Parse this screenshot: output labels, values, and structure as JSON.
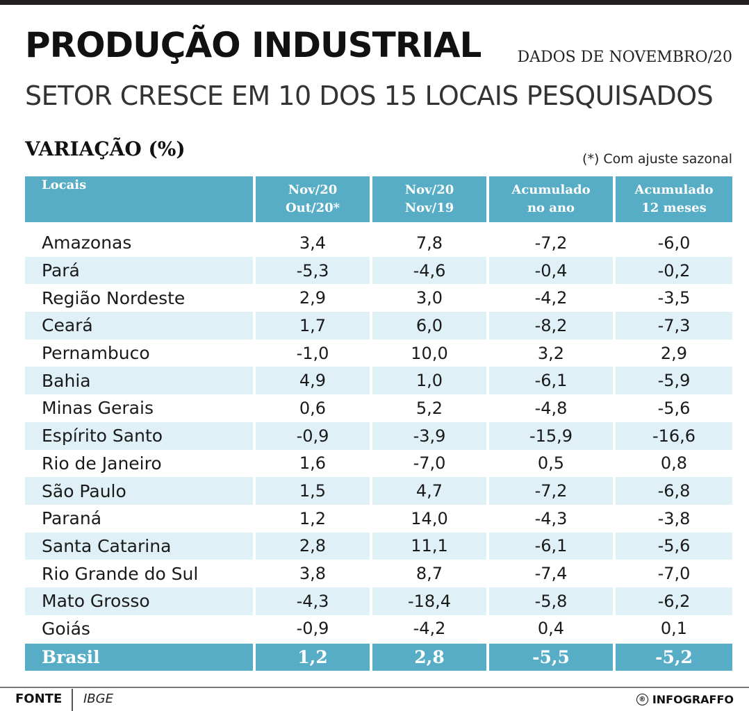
{
  "header": {
    "title": "PRODUÇÃO INDUSTRIAL",
    "period": "DADOS DE NOVEMBRO/20",
    "subtitle": "SETOR CRESCE EM 10 DOS 15 LOCAIS PESQUISADOS",
    "section": "VARIAÇÃO (%)",
    "note": "(*) Com ajuste sazonal"
  },
  "chart_data": {
    "type": "table",
    "columns": [
      {
        "label_line1": "Locais",
        "label_line2": ""
      },
      {
        "label_line1": "Nov/20",
        "label_line2": "Out/20*"
      },
      {
        "label_line1": "Nov/20",
        "label_line2": "Nov/19"
      },
      {
        "label_line1": "Acumulado",
        "label_line2": "no ano"
      },
      {
        "label_line1": "Acumulado",
        "label_line2": "12 meses"
      }
    ],
    "rows": [
      {
        "local": "Amazonas",
        "values": [
          "3,4",
          "7,8",
          "-7,2",
          "-6,0"
        ]
      },
      {
        "local": "Pará",
        "values": [
          "-5,3",
          "-4,6",
          "-0,4",
          "-0,2"
        ]
      },
      {
        "local": "Região Nordeste",
        "values": [
          "2,9",
          "3,0",
          "-4,2",
          "-3,5"
        ]
      },
      {
        "local": "Ceará",
        "values": [
          "1,7",
          "6,0",
          "-8,2",
          "-7,3"
        ]
      },
      {
        "local": "Pernambuco",
        "values": [
          "-1,0",
          "10,0",
          "3,2",
          "2,9"
        ]
      },
      {
        "local": "Bahia",
        "values": [
          "4,9",
          "1,0",
          "-6,1",
          "-5,9"
        ]
      },
      {
        "local": "Minas Gerais",
        "values": [
          "0,6",
          "5,2",
          "-4,8",
          "-5,6"
        ]
      },
      {
        "local": "Espírito Santo",
        "values": [
          "-0,9",
          "-3,9",
          "-15,9",
          "-16,6"
        ]
      },
      {
        "local": "Rio de Janeiro",
        "values": [
          "1,6",
          "-7,0",
          "0,5",
          "0,8"
        ]
      },
      {
        "local": "São Paulo",
        "values": [
          "1,5",
          "4,7",
          "-7,2",
          "-6,8"
        ]
      },
      {
        "local": "Paraná",
        "values": [
          "1,2",
          "14,0",
          "-4,3",
          "-3,8"
        ]
      },
      {
        "local": "Santa Catarina",
        "values": [
          "2,8",
          "11,1",
          "-6,1",
          "-5,6"
        ]
      },
      {
        "local": "Rio Grande do Sul",
        "values": [
          "3,8",
          "8,7",
          "-7,4",
          "-7,0"
        ]
      },
      {
        "local": "Mato Grosso",
        "values": [
          "-4,3",
          "-18,4",
          "-5,8",
          "-6,2"
        ]
      },
      {
        "local": "Goiás",
        "values": [
          "-0,9",
          "-4,2",
          "0,4",
          "0,1"
        ]
      }
    ],
    "total": {
      "local": "Brasil",
      "values": [
        "1,2",
        "2,8",
        "-5,5",
        "-5,2"
      ]
    }
  },
  "footer": {
    "source_label": "FONTE",
    "source_value": "IBGE",
    "brand_mark": "®",
    "brand": "INFOGRAFFO"
  },
  "colors": {
    "accent": "#57adc6",
    "stripe": "#dff0f6",
    "rule": "#231f20"
  }
}
